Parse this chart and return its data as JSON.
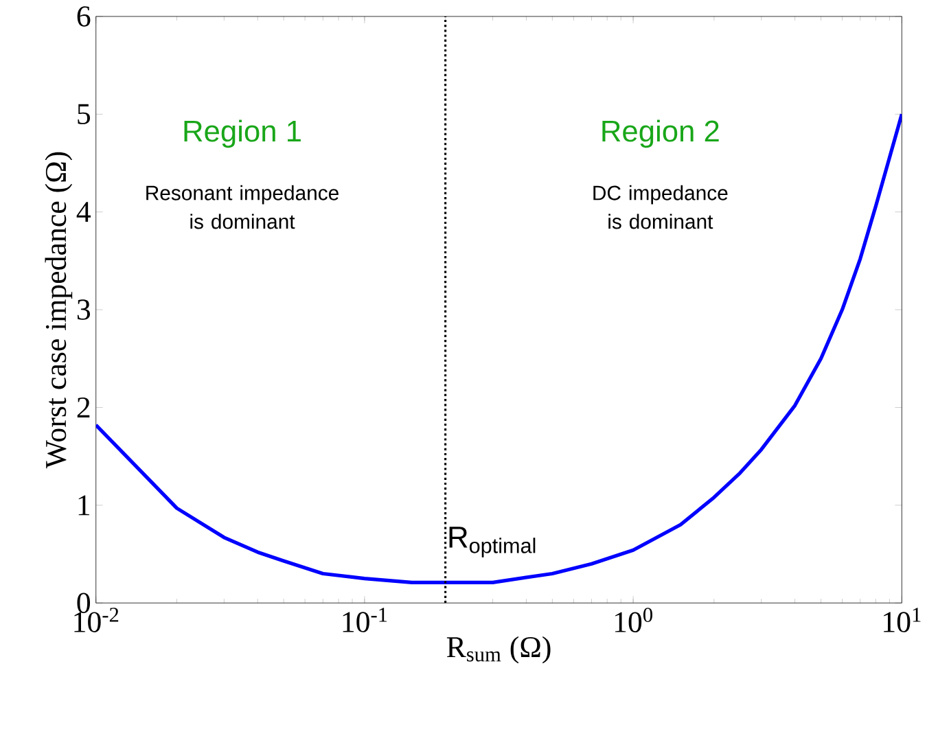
{
  "chart_data": {
    "type": "line",
    "xlabel": "R$_{sum}$ (Ω)",
    "ylabel": "Worst case impedance (Ω)",
    "log": "x",
    "x": [
      0.01,
      0.02,
      0.03,
      0.04,
      0.05,
      0.07,
      0.1,
      0.15,
      0.2,
      0.3,
      0.5,
      0.7,
      1,
      1.5,
      2,
      2.5,
      3,
      4,
      5,
      6,
      7,
      8,
      10
    ],
    "series": [
      {
        "color": "#0000ff",
        "values": [
          1.82,
          0.97,
          0.67,
          0.52,
          0.43,
          0.3,
          0.25,
          0.21,
          0.21,
          0.21,
          0.3,
          0.4,
          0.54,
          0.8,
          1.08,
          1.33,
          1.57,
          2.02,
          2.5,
          3.0,
          3.52,
          4.06,
          5.0
        ]
      }
    ],
    "xlim": [
      0.01,
      10
    ],
    "ylim": [
      0,
      6
    ],
    "xticks": [
      {
        "value": 0.01,
        "label": "10$^{-2}$"
      },
      {
        "value": 0.1,
        "label": "10$^{-1}$"
      },
      {
        "value": 1,
        "label": "10$^{0}$"
      },
      {
        "value": 10,
        "label": "10$^{1}$"
      }
    ],
    "yticks": [
      0,
      1,
      2,
      3,
      4,
      5,
      6
    ],
    "ref_lines": [
      {
        "axis": "x",
        "value": 0.2,
        "label": "R$_{optimal}$",
        "color": "#000000",
        "line_style": "dotted"
      }
    ],
    "annotations": [
      "Region 1",
      "Resonant impedance is dominant",
      "Region 2",
      "DC impedance is dominant"
    ],
    "grid": false,
    "marker": "none",
    "line_style": "solid"
  }
}
